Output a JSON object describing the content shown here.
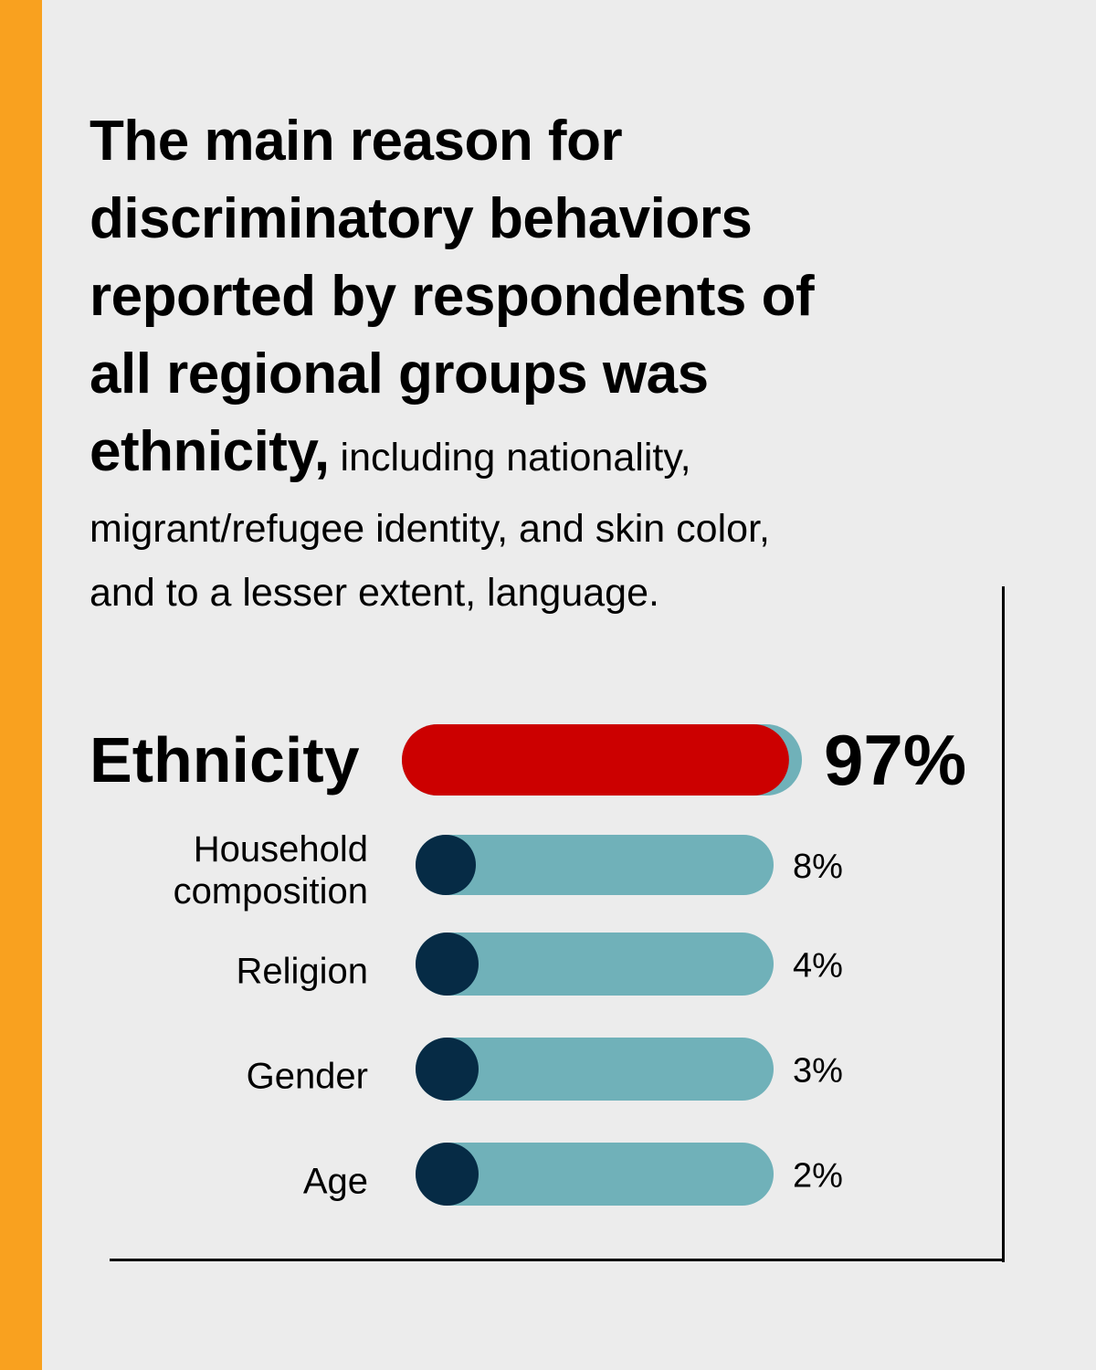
{
  "headline": {
    "lines": [
      "The main reason for",
      "discriminatory behaviors",
      "reported by respondents of",
      "all regional groups was",
      "ethnicity,"
    ],
    "inline_text": " including nationality,",
    "body_lines": [
      "migrant/refugee identity, and skin color,",
      "and to a lesser extent, language."
    ]
  },
  "colors": {
    "accent_stripe": "#f9a11f",
    "highlight": "#cc0000",
    "track": "#70b1b9",
    "knob": "#062b45",
    "background": "#ececec"
  },
  "chart_data": {
    "type": "bar",
    "orientation": "horizontal",
    "categories": [
      "Ethnicity",
      "Household composition",
      "Religion",
      "Gender",
      "Age"
    ],
    "category_lines": [
      [
        "Ethnicity"
      ],
      [
        "Household",
        "composition"
      ],
      [
        "Religion"
      ],
      [
        "Gender"
      ],
      [
        "Age"
      ]
    ],
    "values": [
      97,
      8,
      4,
      3,
      2
    ],
    "value_labels": [
      "97%",
      "8%",
      "4%",
      "3%",
      "2%"
    ],
    "xlim": [
      0,
      100
    ],
    "highlight_index": 0
  }
}
